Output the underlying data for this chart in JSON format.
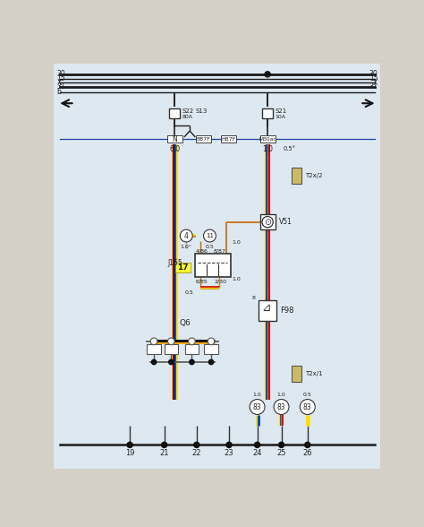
{
  "bg_color": "#e8e8e8",
  "fig_width": 4.74,
  "fig_height": 5.88,
  "dpi": 100,
  "rail_labels_left": [
    "30",
    "15",
    "X",
    "31",
    "b"
  ],
  "rail_labels_right": [
    "30",
    "15",
    "X",
    "31"
  ],
  "bottom_labels": [
    "19",
    "21",
    "22",
    "23",
    "24",
    "25",
    "26"
  ],
  "wire_colors_left": [
    "#ffcc00",
    "#cc0000",
    "#111111",
    "#ff8800",
    "#0044bb"
  ],
  "wire_colors_right": [
    "#ffcc00",
    "#0044bb",
    "#cc8800",
    "#cc0000"
  ]
}
